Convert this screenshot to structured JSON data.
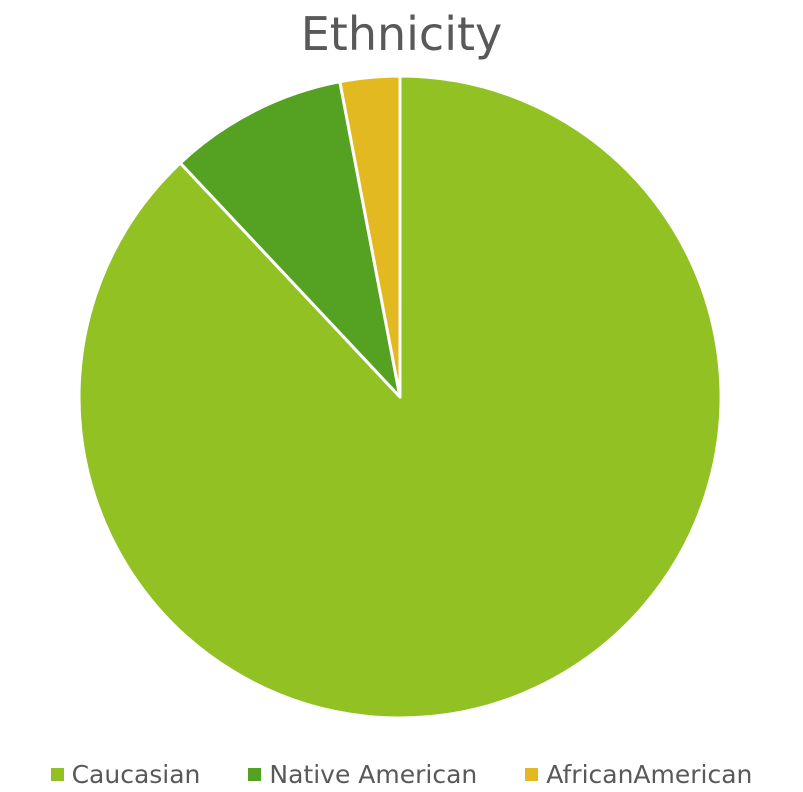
{
  "chart_data": {
    "type": "pie",
    "title": "Ethnicity",
    "categories": [
      "Caucasian",
      "Native American",
      "AfricanAmerican"
    ],
    "values": [
      88,
      9,
      3
    ],
    "colors": [
      "#92c124",
      "#55a122",
      "#e3b922"
    ],
    "start_angle_deg": 0,
    "direction": "clockwise",
    "legend_position": "bottom"
  }
}
